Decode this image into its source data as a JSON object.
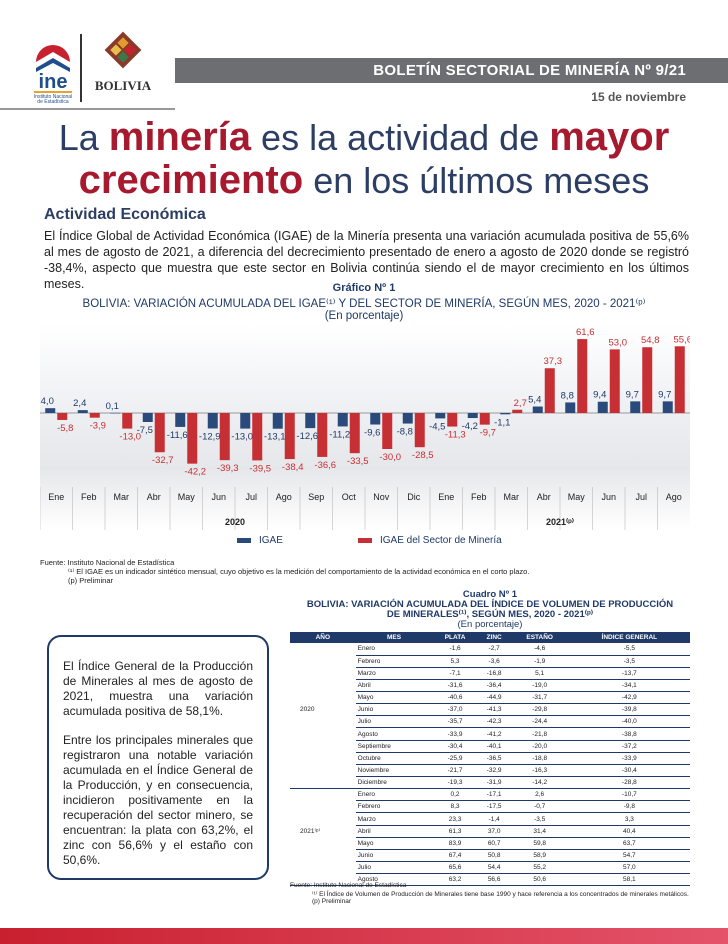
{
  "header": {
    "logo_ine": "ine",
    "logo_ine_sub": "Instituto Nacional de Estadística",
    "logo_bolivia": "BOLIVIA",
    "banner": "BOLETÍN SECTORIAL DE MINERÍA Nº 9/21",
    "date": "15 de noviembre"
  },
  "title": {
    "p1": "La ",
    "h1": "minería",
    "p2": " es la actividad de ",
    "h2": "mayor",
    "h3": "crecimiento",
    "p3": " en los últimos meses"
  },
  "section": "Actividad Económica",
  "paragraph": "El Índice Global de Actividad Económica (IGAE) de la Minería presenta una variación acumulada positiva de 55,6% al mes de agosto de 2021, a diferencia del decrecimiento presentado de enero a agosto de 2020 donde se registró -38,4%, aspecto que muestra que este sector en Bolivia continúa siendo el de mayor crecimiento en los últimos meses.",
  "chart_data": {
    "type": "bar",
    "label": "Gráfico Nº 1",
    "title": "BOLIVIA: VARIACIÓN ACUMULADA DEL IGAE⁽¹⁾ Y DEL SECTOR DE MINERÍA, SEGÚN MES, 2020 - 2021⁽ᵖ⁾",
    "subtitle": "(En porcentaje)",
    "categories": [
      "Ene",
      "Feb",
      "Mar",
      "Abr",
      "May",
      "Jun",
      "Jul",
      "Ago",
      "Sep",
      "Oct",
      "Nov",
      "Dic",
      "Ene",
      "Feb",
      "Mar",
      "Abr",
      "May",
      "Jun",
      "Jul",
      "Ago"
    ],
    "groups": [
      {
        "label": "2020",
        "count": 12
      },
      {
        "label": "2021⁽ᵖ⁾",
        "count": 8
      }
    ],
    "series": [
      {
        "name": "IGAE",
        "color": "#2a4a7c",
        "values": [
          4.0,
          2.4,
          0.1,
          -7.5,
          -11.6,
          -12.9,
          -13.0,
          -13.1,
          -12.6,
          -11.2,
          -9.6,
          -8.8,
          -4.5,
          -4.2,
          -1.1,
          5.4,
          8.8,
          9.4,
          9.7,
          9.7
        ]
      },
      {
        "name": "IGAE del Sector de Minería",
        "color": "#c62f33",
        "values": [
          -5.8,
          -3.9,
          -13.0,
          -32.7,
          -42.2,
          -39.3,
          -39.5,
          -38.4,
          -36.6,
          -33.5,
          -30.0,
          -28.5,
          -11.3,
          -9.7,
          2.7,
          37.3,
          61.6,
          53.0,
          54.8,
          55.6
        ]
      }
    ],
    "legend": "bottom"
  },
  "chart_notes": {
    "source": "Fuente: Instituto Nacional de Estadística",
    "note1": "⁽¹⁾ El IGAE es un indicador sintético mensual, cuyo objetivo es la medición del comportamiento de la actividad económica en el corto plazo.",
    "note2": "(p) Preliminar"
  },
  "box": {
    "p1": "El Índice General de la Producción de Minerales al mes de agosto de 2021, muestra una variación acumulada positiva de 58,1%.",
    "p2": "Entre los principales minerales que registraron una notable variación acumulada en el Índice General de la Producción, y en consecuencia, incidieron positivamente en la recuperación del sector minero, se encuentran: la plata con 63,2%, el zinc con 56,6% y el estaño con 50,6%."
  },
  "table": {
    "label": "Cuadro Nº 1",
    "title1": "BOLIVIA: VARIACIÓN ACUMULADA DEL ÍNDICE DE VOLUMEN DE PRODUCCIÓN",
    "title2": "DE MINERALES⁽¹⁾, SEGÚN MES, 2020 - 2021⁽ᵖ⁾",
    "subtitle": "(En porcentaje)",
    "headers": [
      "AÑO",
      "MES",
      "PLATA",
      "ZINC",
      "ESTAÑO",
      "ÍNDICE GENERAL"
    ],
    "groups": [
      {
        "year": "2020",
        "rows": [
          [
            "Enero",
            "-1,6",
            "-2,7",
            "-4,6",
            "-5,5"
          ],
          [
            "Febrero",
            "5,3",
            "-3,6",
            "-1,9",
            "-3,5"
          ],
          [
            "Marzo",
            "-7,1",
            "-16,8",
            "5,1",
            "-13,7"
          ],
          [
            "Abril",
            "-31,6",
            "-36,4",
            "-19,0",
            "-34,1"
          ],
          [
            "Mayo",
            "-40,6",
            "-44,9",
            "-31,7",
            "-42,9"
          ],
          [
            "Junio",
            "-37,0",
            "-41,3",
            "-29,8",
            "-39,8"
          ],
          [
            "Julio",
            "-35,7",
            "-42,3",
            "-24,4",
            "-40,0"
          ],
          [
            "Agosto",
            "-33,9",
            "-41,2",
            "-21,8",
            "-38,8"
          ],
          [
            "Septiembre",
            "-30,4",
            "-40,1",
            "-20,0",
            "-37,2"
          ],
          [
            "Octubre",
            "-25,9",
            "-36,5",
            "-18,8",
            "-33,9"
          ],
          [
            "Noviembre",
            "-21,7",
            "-32,9",
            "-16,3",
            "-30,4"
          ],
          [
            "Diciembre",
            "-19,3",
            "-31,9",
            "-14,2",
            "-28,8"
          ]
        ]
      },
      {
        "year": "2021⁽ᵖ⁾",
        "rows": [
          [
            "Enero",
            "0,2",
            "-17,1",
            "2,6",
            "-10,7"
          ],
          [
            "Febrero",
            "8,3",
            "-17,5",
            "-0,7",
            "-9,8"
          ],
          [
            "Marzo",
            "23,3",
            "-1,4",
            "-3,5",
            "3,3"
          ],
          [
            "Abril",
            "61,3",
            "37,0",
            "31,4",
            "40,4"
          ],
          [
            "Mayo",
            "83,9",
            "60,7",
            "59,8",
            "63,7"
          ],
          [
            "Junio",
            "67,4",
            "50,8",
            "58,9",
            "54,7"
          ],
          [
            "Julio",
            "65,6",
            "54,4",
            "55,2",
            "57,0"
          ],
          [
            "Agosto",
            "63,2",
            "56,6",
            "50,6",
            "58,1"
          ]
        ]
      }
    ],
    "source": "Fuente: Instituto Nacional de Estadística",
    "note1": "⁽¹⁾ El Índice de Volumen de Producción de Minerales tiene base 1990 y hace referencia a los concentrados de minerales metálicos.",
    "note2": "(p) Preliminar"
  }
}
